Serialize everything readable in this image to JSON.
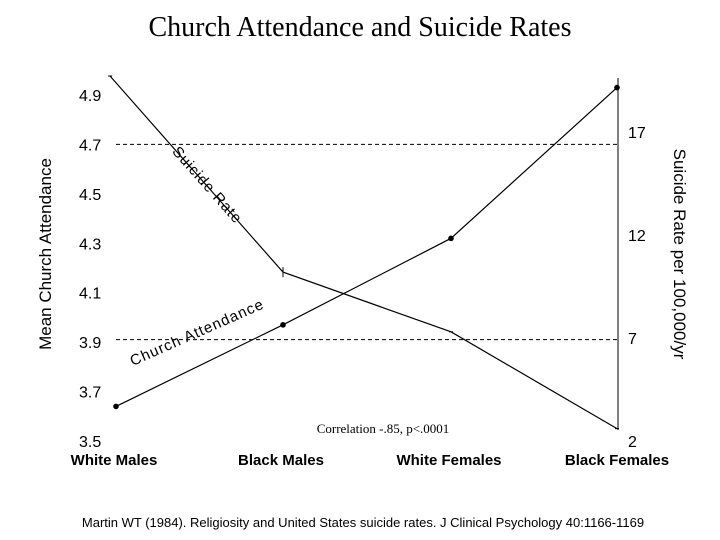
{
  "chart_data": {
    "type": "line",
    "title": "Church Attendance and Suicide Rates",
    "categories": [
      "White Males",
      "Black Males",
      "White Females",
      "Black Females"
    ],
    "ylabel_left": "Mean Church Attendance",
    "ylabel_right": "Suicide Rate per 100,000/yr",
    "ylim_left": [
      3.5,
      4.9
    ],
    "yticks_left": [
      "4.9",
      "4.7",
      "4.5",
      "4.3",
      "4.1",
      "3.9",
      "3.7",
      "3.5"
    ],
    "ylim_right": [
      2,
      18.8
    ],
    "yticks_right": [
      "17",
      "12",
      "7",
      "2"
    ],
    "reference_lines_left": [
      4.7,
      3.91
    ],
    "series": [
      {
        "name": "Church Attendance",
        "axis": "left",
        "values": [
          3.64,
          3.97,
          4.32,
          4.93
        ]
      },
      {
        "name": "Suicide Rate",
        "axis": "right",
        "values": [
          20.5,
          10.2,
          7.3,
          2.6
        ]
      }
    ],
    "annotation": "Correlation  -.85, p<.0001",
    "citation": "Martin WT (1984). Religiosity and United States suicide rates.  J Clinical Psychology 40:1166-1169",
    "grid": false,
    "legend": "inline labels along lines"
  }
}
